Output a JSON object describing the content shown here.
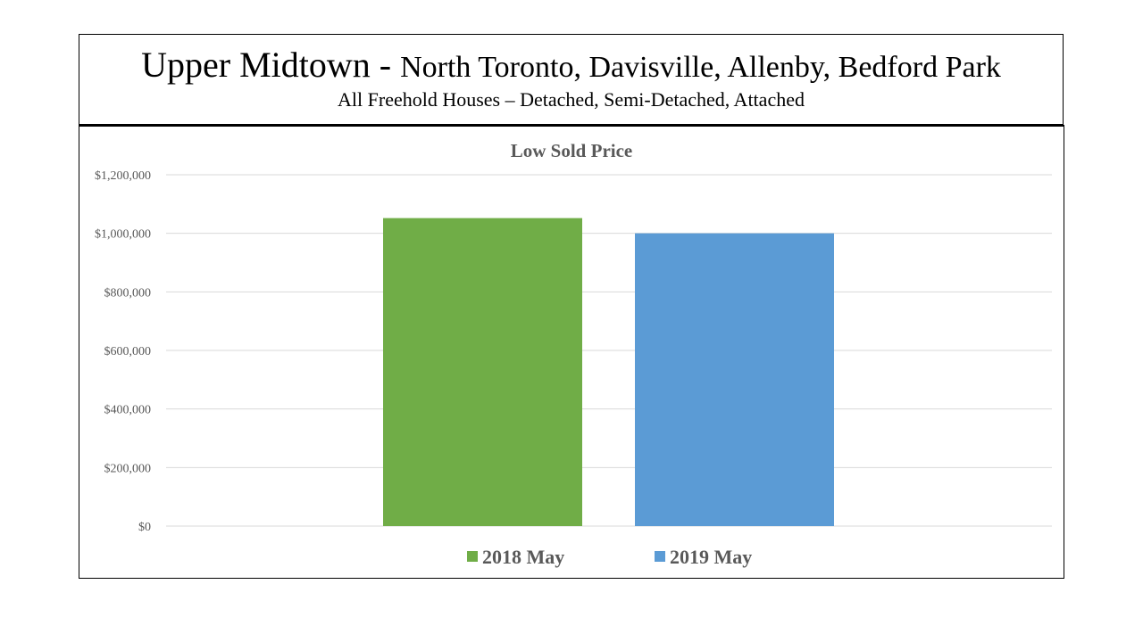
{
  "header": {
    "title_main": "Upper Midtown - ",
    "title_rest": "North Toronto, Davisville, Allenby, Bedford Park",
    "subtitle": "All Freehold Houses – Detached, Semi-Detached, Attached"
  },
  "chart_data": {
    "type": "bar",
    "title": "Low Sold Price",
    "xlabel": "",
    "ylabel": "",
    "categories": [
      ""
    ],
    "series": [
      {
        "name": "2018 May",
        "values": [
          1052000
        ],
        "color": "#70AD47"
      },
      {
        "name": "2019 May",
        "values": [
          1000000
        ],
        "color": "#5B9BD5"
      }
    ],
    "ylim": [
      0,
      1200000
    ],
    "yticks": [
      0,
      200000,
      400000,
      600000,
      800000,
      1000000,
      1200000
    ],
    "ytick_labels": [
      "$0",
      "$200,000",
      "$400,000",
      "$600,000",
      "$800,000",
      "$1,000,000",
      "$1,200,000"
    ],
    "grid": true,
    "legend_position": "bottom"
  }
}
